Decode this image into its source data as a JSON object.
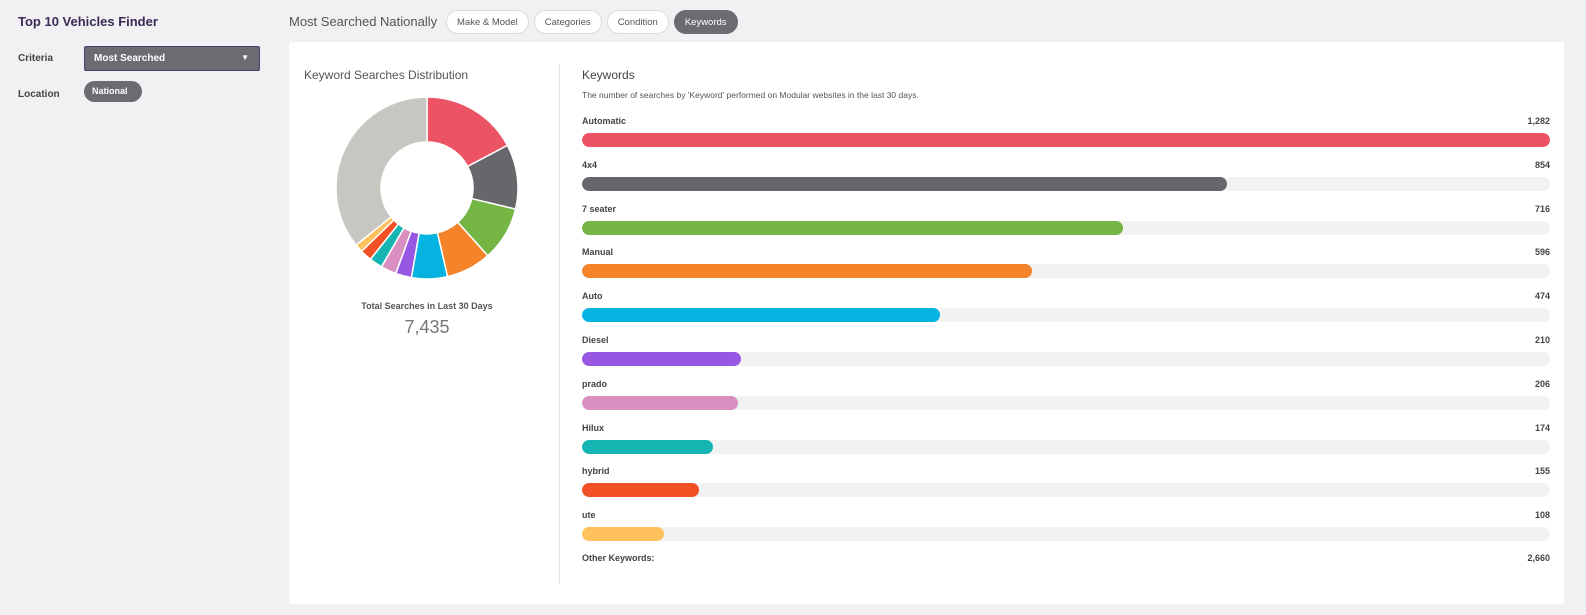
{
  "sidebar": {
    "title": "Top 10 Vehicles Finder",
    "criteria_label": "Criteria",
    "criteria_value": "Most Searched",
    "location_label": "Location",
    "location_value": "National"
  },
  "header": {
    "title": "Most Searched Nationally",
    "tabs": [
      {
        "label": "Make & Model",
        "active": false
      },
      {
        "label": "Categories",
        "active": false
      },
      {
        "label": "Condition",
        "active": false
      },
      {
        "label": "Keywords",
        "active": true
      }
    ]
  },
  "distribution": {
    "title": "Keyword Searches Distribution",
    "total_label": "Total Searches in Last 30 Days",
    "total_value": "7,435"
  },
  "keywords": {
    "title": "Keywords",
    "description": "The number of searches by 'Keyword' performed on Modular websites in the last 30 days.",
    "other_label": "Other Keywords:",
    "other_count": "2,660",
    "other_color": "#c8c6c0"
  },
  "chart_data": {
    "type": "bar",
    "categories": [
      "Automatic",
      "4x4",
      "7 seater",
      "Manual",
      "Auto",
      "Diesel",
      "prado",
      "Hilux",
      "hybrid",
      "ute"
    ],
    "values": [
      1282,
      854,
      716,
      596,
      474,
      210,
      206,
      174,
      155,
      108
    ],
    "value_labels": [
      "1,282",
      "854",
      "716",
      "596",
      "474",
      "210",
      "206",
      "174",
      "155",
      "108"
    ],
    "colors": [
      "#ec5466",
      "#66676b",
      "#74b543",
      "#f4832a",
      "#05b3e0",
      "#9857e3",
      "#d990c0",
      "#16b5b4",
      "#f15124",
      "#fec15e"
    ],
    "other_value": 2660,
    "total": 7435
  }
}
